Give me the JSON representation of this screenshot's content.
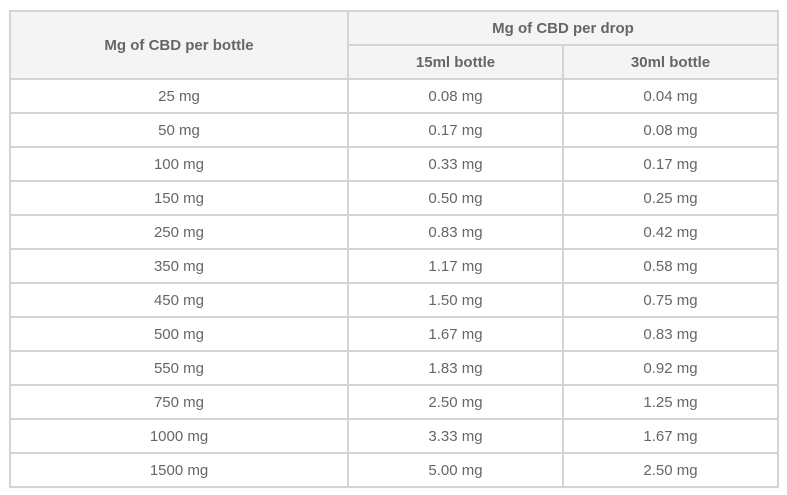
{
  "table": {
    "header": {
      "row_header": "Mg of CBD per bottle",
      "group": "Mg of CBD per drop",
      "columns": [
        "15ml bottle",
        "30ml bottle"
      ]
    },
    "rows": [
      [
        "25 mg",
        "0.08 mg",
        "0.04 mg"
      ],
      [
        "50 mg",
        "0.17 mg",
        "0.08 mg"
      ],
      [
        "100 mg",
        "0.33 mg",
        "0.17 mg"
      ],
      [
        "150 mg",
        "0.50 mg",
        "0.25 mg"
      ],
      [
        "250 mg",
        "0.83 mg",
        "0.42 mg"
      ],
      [
        "350 mg",
        "1.17 mg",
        "0.58 mg"
      ],
      [
        "450 mg",
        "1.50 mg",
        "0.75 mg"
      ],
      [
        "500 mg",
        "1.67 mg",
        "0.83 mg"
      ],
      [
        "550 mg",
        "1.83 mg",
        "0.92 mg"
      ],
      [
        "750 mg",
        "2.50 mg",
        "1.25 mg"
      ],
      [
        "1000 mg",
        "3.33 mg",
        "1.67 mg"
      ],
      [
        "1500 mg",
        "5.00 mg",
        "2.50 mg"
      ]
    ]
  }
}
